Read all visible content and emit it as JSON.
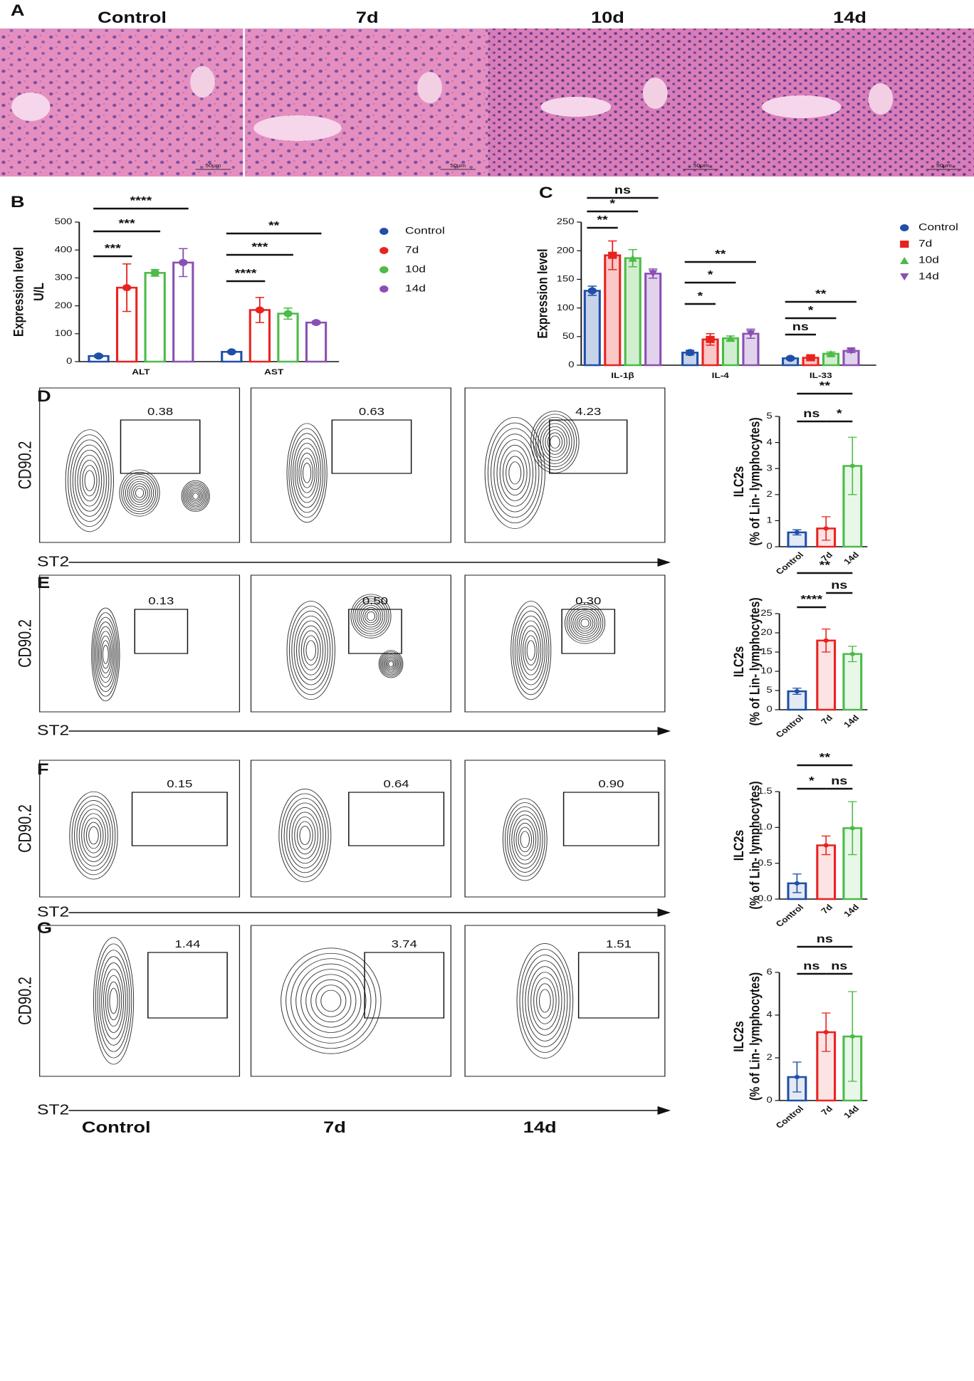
{
  "panel_labels": [
    "A",
    "B",
    "C",
    "D",
    "E",
    "F",
    "G"
  ],
  "histology": {
    "labels": [
      "Control",
      "7d",
      "10d",
      "14d"
    ],
    "scale_bar": "50μm"
  },
  "flow_columns": [
    "Control",
    "7d",
    "14d"
  ],
  "flow": [
    {
      "y_label": "CD90.2",
      "x_label": "ST2",
      "gates": [
        "0.38",
        "0.63",
        "4.23"
      ]
    },
    {
      "y_label": "CD90.2",
      "x_label": "ST2",
      "gates": [
        "0.13",
        "0.50",
        "0.30"
      ]
    },
    {
      "y_label": "CD90.2",
      "x_label": "ST2",
      "gates": [
        "0.15",
        "0.64",
        "0.90"
      ]
    },
    {
      "y_label": "CD90.2",
      "x_label": "ST2",
      "gates": [
        "1.44",
        "3.74",
        "1.51"
      ]
    }
  ],
  "chart_data": [
    {
      "type": "grouped_bar",
      "ylabel": [
        "Expression level",
        "U/L"
      ],
      "categories": [
        "ALT",
        "AST"
      ],
      "series": [
        {
          "name": "Control",
          "color": "#1f4fa8",
          "marker": "circle",
          "values": [
            20,
            35
          ],
          "errors": [
            5,
            3
          ]
        },
        {
          "name": "7d",
          "color": "#e8231f",
          "marker": "circle",
          "values": [
            265,
            185
          ],
          "errors": [
            85,
            45
          ]
        },
        {
          "name": "10d",
          "color": "#4cbb47",
          "marker": "circle",
          "values": [
            318,
            172
          ],
          "errors": [
            12,
            20
          ]
        },
        {
          "name": "14d",
          "color": "#8a4fb3",
          "marker": "circle",
          "values": [
            355,
            140
          ],
          "errors": [
            50,
            5
          ]
        }
      ],
      "ylim": [
        0,
        500
      ],
      "yticks": [
        0,
        100,
        200,
        300,
        400,
        500
      ],
      "annotations": [
        "***",
        "***",
        "****",
        "****",
        "***",
        "**"
      ]
    },
    {
      "type": "grouped_bar",
      "ylabel": [
        "Expression level"
      ],
      "categories": [
        "IL-1β",
        "IL-4",
        "IL-33"
      ],
      "series": [
        {
          "name": "Control",
          "color": "#1f4fa8",
          "marker": "circle",
          "values": [
            130,
            22,
            12
          ],
          "errors": [
            8,
            4,
            2
          ]
        },
        {
          "name": "7d",
          "color": "#e8231f",
          "marker": "square",
          "values": [
            192,
            45,
            13
          ],
          "errors": [
            25,
            10,
            3
          ]
        },
        {
          "name": "10d",
          "color": "#4cbb47",
          "marker": "triangle",
          "values": [
            187,
            47,
            20
          ],
          "errors": [
            15,
            4,
            3
          ]
        },
        {
          "name": "14d",
          "color": "#8a4fb3",
          "marker": "triangle-down",
          "values": [
            160,
            55,
            25
          ],
          "errors": [
            8,
            8,
            3
          ]
        }
      ],
      "ylim": [
        0,
        250
      ],
      "yticks": [
        0,
        50,
        100,
        150,
        200,
        250
      ],
      "annotations": [
        "**",
        "*",
        "ns",
        "*",
        "*",
        "**",
        "ns",
        "*",
        "**"
      ]
    },
    {
      "type": "bar",
      "ylabel": [
        "ILC2s",
        "(% of Lin- lymphocytes)"
      ],
      "categories": [
        "Control",
        "7d",
        "14d"
      ],
      "values": [
        0.55,
        0.7,
        3.1
      ],
      "errors": [
        0.1,
        0.45,
        1.1
      ],
      "colors": [
        "#1f4fa8",
        "#e8231f",
        "#4cbb47"
      ],
      "ylim": [
        0,
        5
      ],
      "yticks": [
        0,
        1,
        2,
        3,
        4,
        5
      ],
      "annotations": [
        "**",
        "ns",
        "*"
      ]
    },
    {
      "type": "bar",
      "ylabel": [
        "ILC2s",
        "(% of Lin- lymphocytes)"
      ],
      "categories": [
        "Control",
        "7d",
        "14d"
      ],
      "values": [
        4.8,
        18,
        14.5
      ],
      "errors": [
        0.8,
        3,
        2
      ],
      "colors": [
        "#1f4fa8",
        "#e8231f",
        "#4cbb47"
      ],
      "ylim": [
        0,
        25
      ],
      "yticks": [
        0,
        5,
        10,
        15,
        20,
        25
      ],
      "annotations": [
        "**",
        "****",
        "ns"
      ]
    },
    {
      "type": "bar",
      "ylabel": [
        "ILC2s",
        "(% of Lin- lymphocytes)"
      ],
      "categories": [
        "Control",
        "7d",
        "14d"
      ],
      "values": [
        0.22,
        0.75,
        0.99
      ],
      "errors": [
        0.13,
        0.13,
        0.37
      ],
      "colors": [
        "#1f4fa8",
        "#e8231f",
        "#4cbb47"
      ],
      "ylim": [
        0,
        1.5
      ],
      "yticks": [
        {
          "value": 0,
          "label": "0.0"
        },
        {
          "value": 0.5,
          "label": "0.5"
        },
        {
          "value": 1,
          "label": "1.0"
        },
        {
          "value": 1.5,
          "label": "1.5"
        }
      ],
      "annotations": [
        "**",
        "*",
        "ns"
      ]
    },
    {
      "type": "bar",
      "ylabel": [
        "ILC2s",
        "(% of Lin- lymphocytes)"
      ],
      "categories": [
        "Control",
        "7d",
        "14d"
      ],
      "values": [
        1.1,
        3.2,
        3.0
      ],
      "errors": [
        0.7,
        0.9,
        2.1
      ],
      "colors": [
        "#1f4fa8",
        "#e8231f",
        "#4cbb47"
      ],
      "ylim": [
        0,
        6
      ],
      "yticks": [
        0,
        2,
        4,
        6
      ],
      "annotations": [
        "ns",
        "ns",
        "ns"
      ]
    }
  ]
}
